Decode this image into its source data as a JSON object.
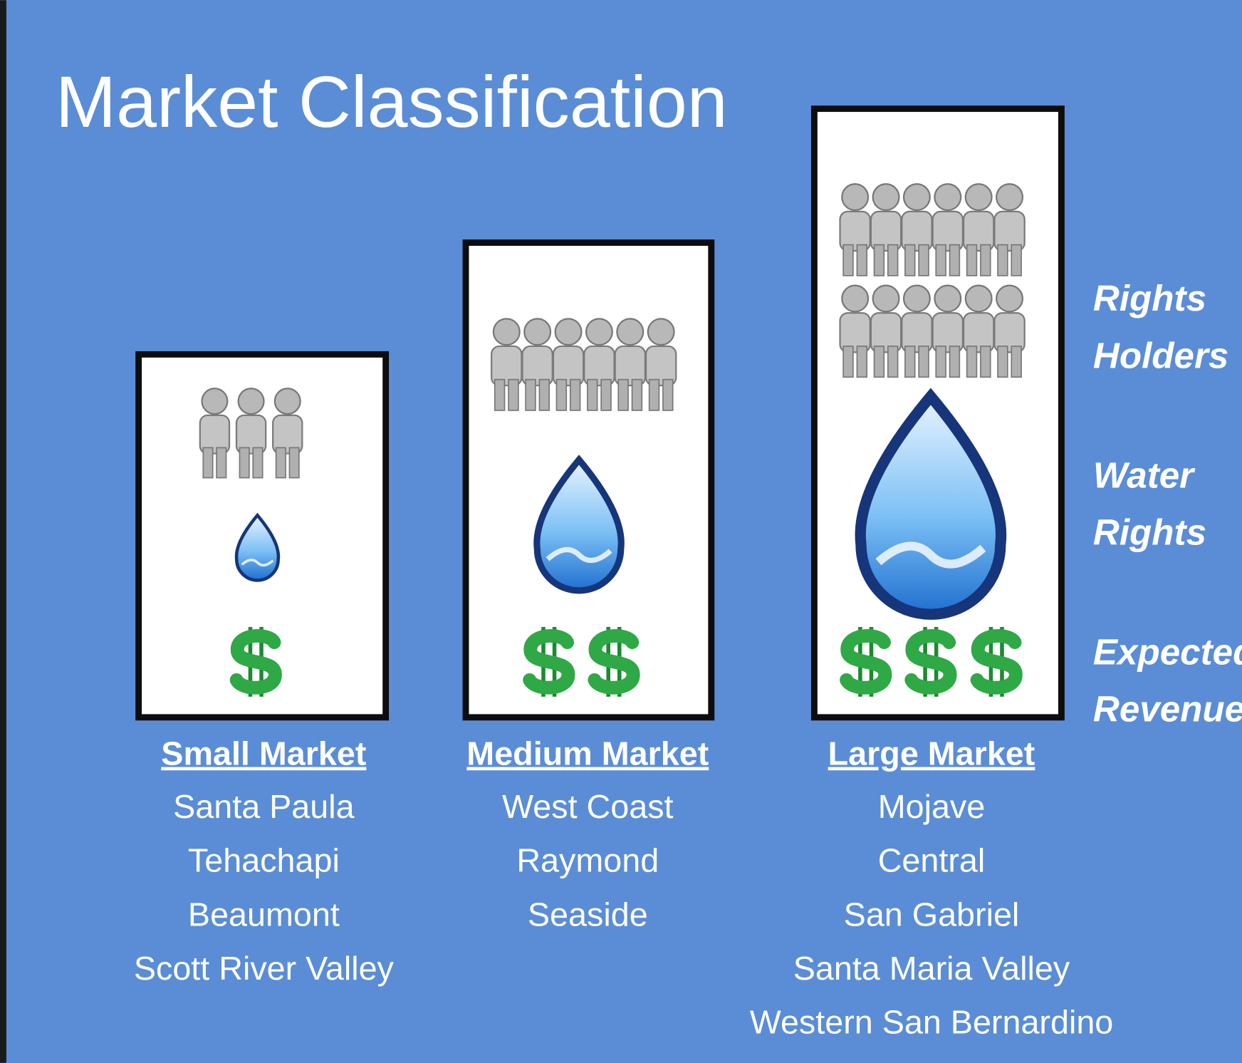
{
  "title": "Market Classification",
  "markets": [
    {
      "name": "Small Market",
      "locations": [
        "Santa Paula",
        "Tehachapi",
        "Beaumont",
        "Scott River Valley"
      ]
    },
    {
      "name": "Medium Market",
      "locations": [
        "West Coast",
        "Raymond",
        "Seaside"
      ]
    },
    {
      "name": "Large Market",
      "locations": [
        "Mojave",
        "Central",
        "San Gabriel",
        "Santa Maria Valley",
        "Western San Bernardino"
      ]
    }
  ],
  "legend": [
    [
      "Rights",
      "Holders"
    ],
    [
      "Water",
      "Rights"
    ],
    [
      "Expected",
      "Revenue"
    ]
  ]
}
